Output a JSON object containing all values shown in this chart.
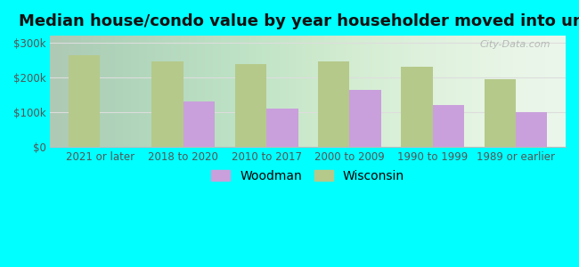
{
  "categories": [
    "2021 or later",
    "2018 to 2020",
    "2010 to 2017",
    "2000 to 2009",
    "1990 to 1999",
    "1989 or earlier"
  ],
  "woodman_values": [
    0,
    130000,
    110000,
    165000,
    120000,
    100000
  ],
  "wisconsin_values": [
    265000,
    245000,
    237000,
    245000,
    230000,
    195000
  ],
  "woodman_color": "#c9a0dc",
  "wisconsin_color": "#b5c98a",
  "title": "Median house/condo value by year householder moved into unit",
  "yticks": [
    0,
    100000,
    200000,
    300000
  ],
  "ytick_labels": [
    "$0",
    "$100k",
    "$200k",
    "$300k"
  ],
  "ylim": [
    0,
    320000
  ],
  "outer_bg_color": "#00ffff",
  "plot_bg_color": "#e8f5e8",
  "watermark": "City-Data.com",
  "legend_labels": [
    "Woodman",
    "Wisconsin"
  ],
  "bar_width": 0.38,
  "title_fontsize": 13,
  "tick_fontsize": 8.5,
  "legend_fontsize": 10
}
